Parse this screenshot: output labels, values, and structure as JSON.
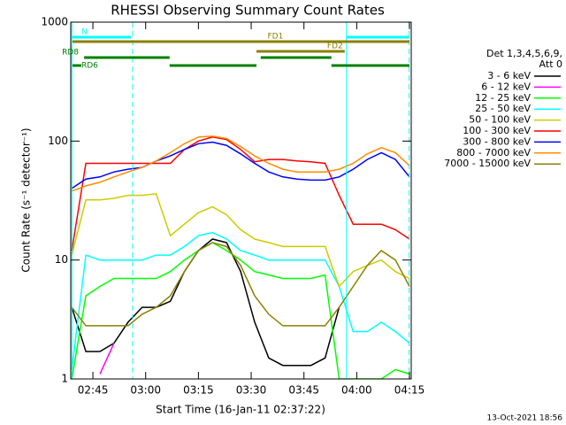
{
  "chart_data": {
    "type": "line",
    "title": "RHESSI Observing Summary Count Rates",
    "xlabel": "Start Time (16-Jan-11 02:37:22)",
    "ylabel": "Count Rate (s⁻¹ detector⁻¹)",
    "legend_header": [
      "Det 1,3,4,5,6,9,",
      "Att 0"
    ],
    "footer": "13-Oct-2021 18:56",
    "log_y": true,
    "xlim": [
      158.7,
      255.5
    ],
    "ylim": [
      1,
      1000
    ],
    "yticks": [
      1,
      10,
      100,
      1000
    ],
    "xticks": [
      {
        "value": 165,
        "label": "02:45"
      },
      {
        "value": 180,
        "label": "03:00"
      },
      {
        "value": 195,
        "label": "03:15"
      },
      {
        "value": 210,
        "label": "03:30"
      },
      {
        "value": 225,
        "label": "03:45"
      },
      {
        "value": 240,
        "label": "04:00"
      },
      {
        "value": 255,
        "label": "04:15"
      }
    ],
    "x": [
      159,
      163,
      167,
      171,
      175,
      179,
      183,
      187,
      191,
      195,
      199,
      203,
      207,
      211,
      215,
      219,
      223,
      227,
      231,
      235,
      239,
      243,
      247,
      251,
      255
    ],
    "series": [
      {
        "name": "3 - 6 keV",
        "color": "#000000",
        "values": [
          4,
          1.7,
          1.7,
          2,
          3,
          4,
          4,
          4.5,
          8,
          12,
          15,
          14,
          8,
          3,
          1.5,
          1.3,
          1.3,
          1.3,
          1.5,
          4,
          null,
          null,
          null,
          null,
          null
        ]
      },
      {
        "name": "6 - 12 keV",
        "color": "#ff00ff",
        "values": [
          null,
          null,
          1.1,
          2,
          null,
          null,
          null,
          null,
          null,
          null,
          null,
          null,
          null,
          null,
          null,
          null,
          null,
          null,
          null,
          null,
          null,
          null,
          null,
          null,
          null
        ]
      },
      {
        "name": "12 - 25 keV",
        "color": "#00ff00",
        "values": [
          1,
          5,
          6,
          7,
          7,
          7,
          7,
          8,
          10,
          12,
          14,
          12,
          10,
          8,
          7.5,
          7,
          7,
          7,
          7.5,
          1,
          1,
          1,
          1,
          1.2,
          1.1
        ]
      },
      {
        "name": "25 - 50 keV",
        "color": "#00ffff",
        "values": [
          1.2,
          11,
          10,
          10,
          10,
          10,
          11,
          11,
          13,
          16,
          17,
          15,
          12,
          11,
          10,
          10,
          10,
          10,
          10,
          6,
          2.5,
          2.5,
          3,
          2.5,
          2
        ]
      },
      {
        "name": "50 - 100 keV",
        "color": "#cccc00",
        "values": [
          11,
          32,
          32,
          33,
          35,
          35,
          36,
          16,
          20,
          25,
          28,
          24,
          18,
          15,
          14,
          13,
          13,
          13,
          13,
          6,
          8,
          9,
          10,
          8,
          7
        ]
      },
      {
        "name": "100 - 300 keV",
        "color": "#ff0000",
        "values": [
          12,
          65,
          65,
          65,
          65,
          65,
          65,
          65,
          85,
          100,
          108,
          103,
          85,
          67,
          70,
          70,
          68,
          67,
          65,
          35,
          20,
          20,
          20,
          18,
          15
        ]
      },
      {
        "name": "300 - 800 keV",
        "color": "#0000ff",
        "values": [
          40,
          48,
          50,
          55,
          58,
          60,
          68,
          75,
          85,
          95,
          98,
          92,
          78,
          65,
          55,
          50,
          48,
          47,
          47,
          50,
          58,
          70,
          80,
          70,
          50
        ]
      },
      {
        "name": "800 - 7000 keV",
        "color": "#ff8c00",
        "values": [
          38,
          42,
          45,
          50,
          55,
          60,
          68,
          80,
          95,
          108,
          110,
          105,
          90,
          75,
          65,
          58,
          55,
          55,
          55,
          58,
          65,
          78,
          88,
          80,
          62
        ]
      },
      {
        "name": "7000 - 15000 keV",
        "color": "#8b8000",
        "values": [
          4,
          2.8,
          2.8,
          2.8,
          2.8,
          3.5,
          4,
          5,
          8,
          12,
          14,
          13,
          9,
          5,
          3.5,
          2.8,
          2.8,
          2.8,
          2.8,
          4,
          6,
          9,
          12,
          10,
          6
        ]
      }
    ],
    "status_bars": [
      {
        "label": "N",
        "color": "#00ffff",
        "segments": [
          [
            159.2,
            175.8
          ],
          [
            237.1,
            254.9
          ]
        ]
      },
      {
        "label": "FD1",
        "color": "#8b8000",
        "segments": [
          [
            159.2,
            255
          ]
        ]
      },
      {
        "label": "FD2",
        "color": "#8b8000",
        "segments": [
          [
            211.5,
            236.6
          ]
        ]
      },
      {
        "label": "RD8",
        "color": "#008000",
        "segments": [
          [
            162.5,
            186.8
          ],
          [
            212.7,
            232.8
          ]
        ]
      },
      {
        "label": "RD6",
        "color": "#008000",
        "segments": [
          [
            159.2,
            161.7
          ],
          [
            186.8,
            211.5
          ],
          [
            232.8,
            255
          ]
        ]
      }
    ],
    "vlines": [
      {
        "x": 159.0,
        "color": "#00ffff",
        "dashed": false
      },
      {
        "x": 176.3,
        "color": "#00ffff",
        "dashed": true
      },
      {
        "x": 237.1,
        "color": "#00ffff",
        "dashed": false
      },
      {
        "x": 254.9,
        "color": "#00ffff",
        "dashed": true
      }
    ]
  }
}
